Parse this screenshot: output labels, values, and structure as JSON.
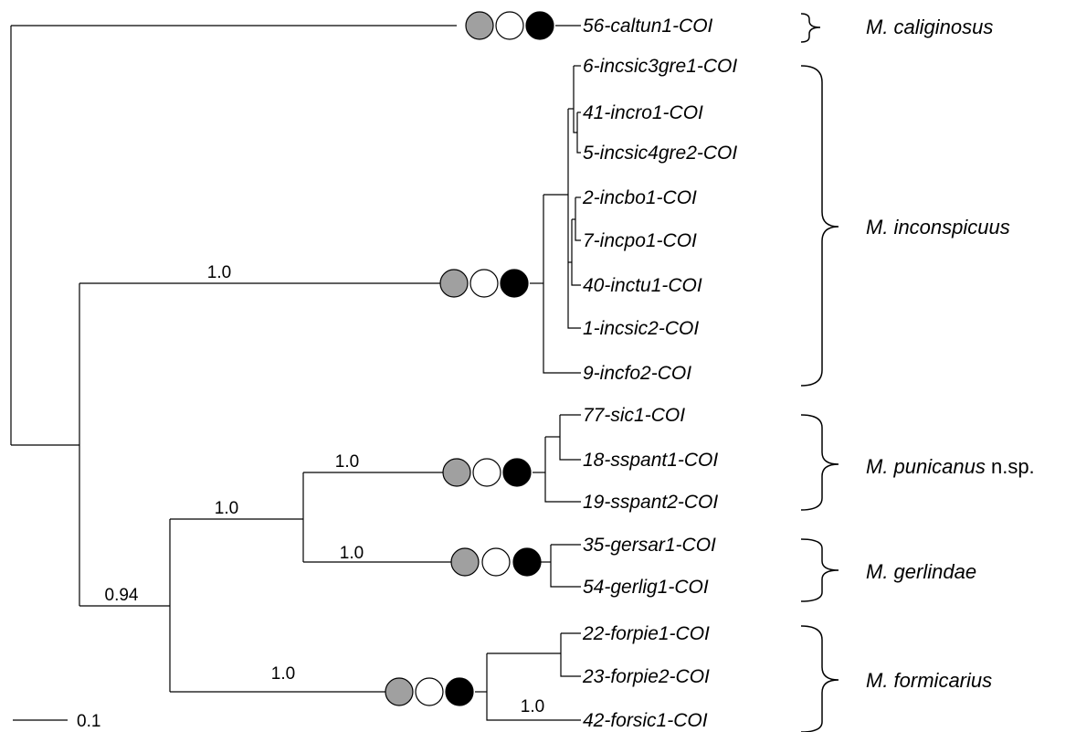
{
  "tree": {
    "scale_bar": {
      "label": "0.1"
    },
    "leaves": [
      "56-caltun1-COI",
      "6-incsic3gre1-COI",
      "41-incro1-COI",
      "5-incsic4gre2-COI",
      "2-incbo1-COI",
      "7-incpo1-COI",
      "40-inctu1-COI",
      "1-incsic2-COI",
      "9-incfo2-COI",
      "77-sic1-COI",
      "18-sspant1-COI",
      "19-sspant2-COI",
      "35-gersar1-COI",
      "54-gerlig1-COI",
      "22-forpie1-COI",
      "23-forpie2-COI",
      "42-forsic1-COI"
    ],
    "support_values": {
      "inconspicuus": "1.0",
      "punicanus": "1.0",
      "punicanus_gerlindae": "1.0",
      "gerlindae": "1.0",
      "lower_clade": "0.94",
      "formicarius": "1.0",
      "forsic": "1.0"
    },
    "species": [
      {
        "name": "M. caliginosus",
        "suffix": ""
      },
      {
        "name": "M. inconspicuus",
        "suffix": ""
      },
      {
        "name": "M. punicanus",
        "suffix": " n.sp."
      },
      {
        "name": "M. gerlindae",
        "suffix": ""
      },
      {
        "name": "M. formicarius",
        "suffix": ""
      }
    ],
    "marker_colors": {
      "first": "#a0a0a0",
      "second": "#ffffff",
      "third": "#000000"
    }
  }
}
